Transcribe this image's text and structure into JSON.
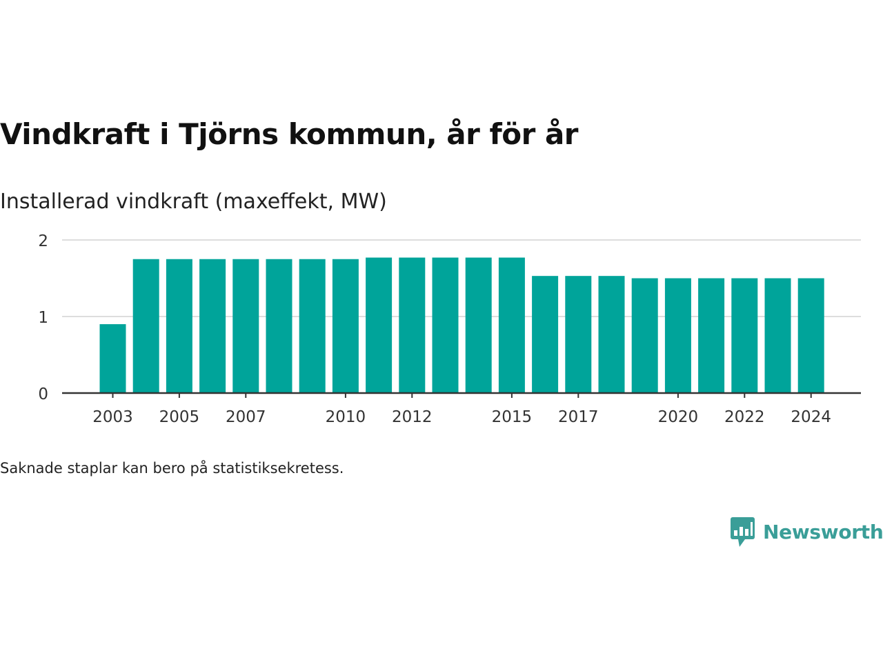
{
  "title": "Vindkraft i Tjörns kommun, år för år",
  "subtitle": "Installerad vindkraft (maxeffekt, MW)",
  "footnote": "Saknade staplar kan bero på statistiksekretess.",
  "brand": {
    "name": "Newsworthy",
    "icon": "newsworthy-bar-chart-icon",
    "color": "#3a9e98"
  },
  "colors": {
    "bar": "#00a49a",
    "grid": "#dddddd",
    "axis": "#333333",
    "tick_text": "#333333"
  },
  "chart_data": {
    "type": "bar",
    "title": "Vindkraft i Tjörns kommun, år för år",
    "subtitle": "Installerad vindkraft (maxeffekt, MW)",
    "xlabel": "",
    "ylabel": "",
    "x": [
      2003,
      2004,
      2005,
      2006,
      2007,
      2008,
      2009,
      2010,
      2011,
      2012,
      2013,
      2014,
      2015,
      2016,
      2017,
      2018,
      2019,
      2020,
      2021,
      2022,
      2023,
      2024
    ],
    "values": [
      0.9,
      1.75,
      1.75,
      1.75,
      1.75,
      1.75,
      1.75,
      1.75,
      1.77,
      1.77,
      1.77,
      1.77,
      1.77,
      1.53,
      1.53,
      1.53,
      1.5,
      1.5,
      1.5,
      1.5,
      1.5,
      1.5
    ],
    "x_ticks": [
      2003,
      2005,
      2007,
      2010,
      2012,
      2015,
      2017,
      2020,
      2022,
      2024
    ],
    "y_ticks": [
      0,
      1,
      2
    ],
    "ylim": [
      0,
      2
    ],
    "grid": true,
    "legend": "none"
  }
}
